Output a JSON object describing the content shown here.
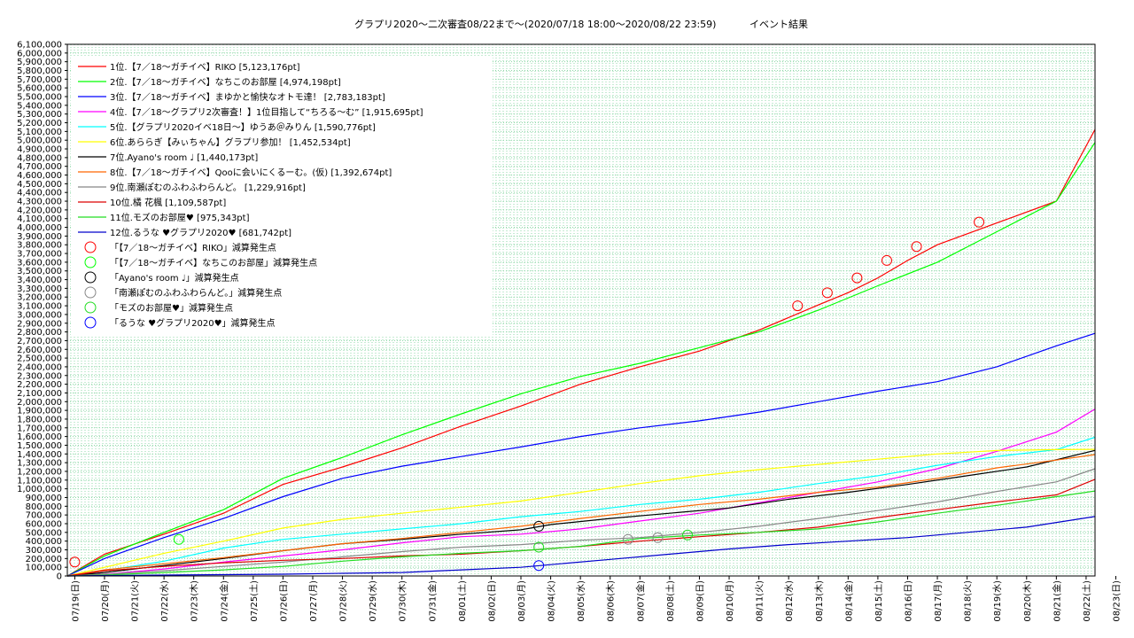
{
  "chart_data": {
    "type": "line",
    "title": "グラプリ2020〜二次審査08/22まで〜(2020/07/18 18:00〜2020/08/22 23:59)",
    "subtitle": "イベント結果",
    "xlabel": "",
    "ylabel": "",
    "ylim": [
      0,
      6100000
    ],
    "grid": true,
    "legend_position": "top-left",
    "x_labels": [
      "07/19(日)",
      "07/20(月)",
      "07/21(火)",
      "07/22(水)",
      "07/23(木)",
      "07/24(金)",
      "07/25(土)",
      "07/26(日)",
      "07/27(月)",
      "07/28(火)",
      "07/29(水)",
      "07/30(木)",
      "07/31(金)",
      "08/01(土)",
      "08/02(日)",
      "08/03(月)",
      "08/04(火)",
      "08/05(水)",
      "08/06(木)",
      "08/07(金)",
      "08/08(土)",
      "08/09(日)",
      "08/10(月)",
      "08/11(火)",
      "08/12(水)",
      "08/13(木)",
      "08/14(金)",
      "08/15(土)",
      "08/16(日)",
      "08/17(月)",
      "08/18(火)",
      "08/19(水)",
      "08/20(木)",
      "08/21(金)",
      "08/22(土)",
      "08/23(日)"
    ],
    "y_ticks": [
      "0",
      "100,000",
      "200,000",
      "300,000",
      "400,000",
      "500,000",
      "600,000",
      "700,000",
      "800,000",
      "900,000",
      "1,000,000",
      "1,100,000",
      "1,200,000",
      "1,300,000",
      "1,400,000",
      "1,500,000",
      "1,600,000",
      "1,700,000",
      "1,800,000",
      "1,900,000",
      "2,000,000",
      "2,100,000",
      "2,200,000",
      "2,300,000",
      "2,400,000",
      "2,500,000",
      "2,600,000",
      "2,700,000",
      "2,800,000",
      "2,900,000",
      "3,000,000",
      "3,100,000",
      "3,200,000",
      "3,300,000",
      "3,400,000",
      "3,500,000",
      "3,600,000",
      "3,700,000",
      "3,800,000",
      "3,900,000",
      "4,000,000",
      "4,100,000",
      "4,200,000",
      "4,300,000",
      "4,400,000",
      "4,500,000",
      "4,600,000",
      "4,700,000",
      "4,800,000",
      "4,900,000",
      "5,000,000",
      "5,100,000",
      "5,200,000",
      "5,300,000",
      "5,400,000",
      "5,500,000",
      "5,600,000",
      "5,700,000",
      "5,800,000",
      "5,900,000",
      "6,000,000",
      "6,100,000"
    ],
    "x_range": [
      -0.25,
      34.3
    ],
    "series": [
      {
        "name": "1位.【7／18〜ガチイベ】RIKO [5,123,176pt]",
        "color": "#ff0000",
        "points": [
          [
            -0.25,
            0
          ],
          [
            1,
            250000
          ],
          [
            3,
            480000
          ],
          [
            5,
            720000
          ],
          [
            7,
            1050000
          ],
          [
            9,
            1250000
          ],
          [
            11,
            1470000
          ],
          [
            13,
            1720000
          ],
          [
            15,
            1950000
          ],
          [
            17,
            2200000
          ],
          [
            19,
            2400000
          ],
          [
            21,
            2580000
          ],
          [
            23,
            2820000
          ],
          [
            25,
            3110000
          ],
          [
            26,
            3250000
          ],
          [
            27,
            3420000
          ],
          [
            28,
            3620000
          ],
          [
            29,
            3800000
          ],
          [
            31,
            4050000
          ],
          [
            33,
            4300000
          ],
          [
            34.3,
            5123176
          ]
        ]
      },
      {
        "name": "2位.【7／18〜ガチイベ】なちこのお部屋 [4,974,198pt]",
        "color": "#00ff00",
        "points": [
          [
            -0.25,
            0
          ],
          [
            1,
            230000
          ],
          [
            3,
            500000
          ],
          [
            5,
            760000
          ],
          [
            7,
            1120000
          ],
          [
            9,
            1360000
          ],
          [
            11,
            1620000
          ],
          [
            13,
            1860000
          ],
          [
            15,
            2090000
          ],
          [
            17,
            2290000
          ],
          [
            19,
            2440000
          ],
          [
            21,
            2620000
          ],
          [
            23,
            2800000
          ],
          [
            25,
            3050000
          ],
          [
            27,
            3330000
          ],
          [
            29,
            3600000
          ],
          [
            31,
            3950000
          ],
          [
            33,
            4300000
          ],
          [
            34.3,
            4974198
          ]
        ]
      },
      {
        "name": "3位.【7／18〜ガチイベ】まゆかと愉快なオトモ達！ [2,783,183pt]",
        "color": "#0000ff",
        "points": [
          [
            -0.25,
            0
          ],
          [
            1,
            200000
          ],
          [
            3,
            440000
          ],
          [
            5,
            660000
          ],
          [
            7,
            910000
          ],
          [
            9,
            1120000
          ],
          [
            11,
            1260000
          ],
          [
            13,
            1370000
          ],
          [
            15,
            1480000
          ],
          [
            17,
            1600000
          ],
          [
            19,
            1700000
          ],
          [
            21,
            1780000
          ],
          [
            23,
            1880000
          ],
          [
            25,
            2000000
          ],
          [
            27,
            2120000
          ],
          [
            29,
            2230000
          ],
          [
            31,
            2400000
          ],
          [
            33,
            2640000
          ],
          [
            34.3,
            2783183
          ]
        ]
      },
      {
        "name": "4位.【7／18〜グラプリ2次審査！】1位目指して“ちろる〜む” [1,915,695pt]",
        "color": "#ff00ff",
        "points": [
          [
            -0.25,
            0
          ],
          [
            1,
            20000
          ],
          [
            3,
            80000
          ],
          [
            5,
            160000
          ],
          [
            7,
            230000
          ],
          [
            9,
            300000
          ],
          [
            11,
            380000
          ],
          [
            13,
            450000
          ],
          [
            15,
            480000
          ],
          [
            17,
            540000
          ],
          [
            19,
            630000
          ],
          [
            21,
            720000
          ],
          [
            23,
            840000
          ],
          [
            25,
            960000
          ],
          [
            27,
            1080000
          ],
          [
            29,
            1230000
          ],
          [
            31,
            1430000
          ],
          [
            33,
            1650000
          ],
          [
            34.3,
            1915695
          ]
        ]
      },
      {
        "name": "5位.【グラプリ2020イベ18日〜】ゆうあ＠みりん [1,590,776pt]",
        "color": "#00ffff",
        "points": [
          [
            -0.25,
            0
          ],
          [
            1,
            60000
          ],
          [
            3,
            170000
          ],
          [
            5,
            320000
          ],
          [
            7,
            420000
          ],
          [
            9,
            480000
          ],
          [
            11,
            540000
          ],
          [
            13,
            600000
          ],
          [
            15,
            680000
          ],
          [
            17,
            740000
          ],
          [
            19,
            820000
          ],
          [
            21,
            880000
          ],
          [
            23,
            960000
          ],
          [
            25,
            1060000
          ],
          [
            27,
            1150000
          ],
          [
            29,
            1270000
          ],
          [
            31,
            1370000
          ],
          [
            33,
            1450000
          ],
          [
            34.3,
            1590776
          ]
        ]
      },
      {
        "name": "6位.あららぎ【みぃちゃん】グラプリ参加！ [1,452,534pt]",
        "color": "#ffff00",
        "points": [
          [
            -0.25,
            0
          ],
          [
            1,
            100000
          ],
          [
            3,
            260000
          ],
          [
            5,
            400000
          ],
          [
            7,
            550000
          ],
          [
            9,
            650000
          ],
          [
            11,
            720000
          ],
          [
            13,
            790000
          ],
          [
            15,
            860000
          ],
          [
            17,
            960000
          ],
          [
            19,
            1060000
          ],
          [
            21,
            1150000
          ],
          [
            23,
            1220000
          ],
          [
            25,
            1280000
          ],
          [
            27,
            1340000
          ],
          [
            29,
            1400000
          ],
          [
            31,
            1440000
          ],
          [
            33,
            1450000
          ],
          [
            34.3,
            1452534
          ]
        ]
      },
      {
        "name": "7位.Ayano's room ♩ [1,440,173pt]",
        "color": "#000000",
        "points": [
          [
            -0.25,
            0
          ],
          [
            1,
            40000
          ],
          [
            3,
            120000
          ],
          [
            5,
            200000
          ],
          [
            7,
            290000
          ],
          [
            9,
            370000
          ],
          [
            11,
            420000
          ],
          [
            13,
            480000
          ],
          [
            15,
            530000
          ],
          [
            16,
            590000
          ],
          [
            18,
            660000
          ],
          [
            20,
            720000
          ],
          [
            22,
            780000
          ],
          [
            24,
            880000
          ],
          [
            26,
            960000
          ],
          [
            28,
            1050000
          ],
          [
            30,
            1150000
          ],
          [
            32,
            1250000
          ],
          [
            34.3,
            1440173
          ]
        ]
      },
      {
        "name": "8位.【7／18〜ガチイベ】Qooに会いにくるーむ。(仮) [1,392,674pt]",
        "color": "#ff6600",
        "points": [
          [
            -0.25,
            0
          ],
          [
            1,
            70000
          ],
          [
            3,
            140000
          ],
          [
            5,
            210000
          ],
          [
            7,
            290000
          ],
          [
            9,
            370000
          ],
          [
            11,
            430000
          ],
          [
            13,
            500000
          ],
          [
            15,
            570000
          ],
          [
            17,
            660000
          ],
          [
            19,
            740000
          ],
          [
            21,
            820000
          ],
          [
            23,
            880000
          ],
          [
            25,
            960000
          ],
          [
            27,
            1020000
          ],
          [
            29,
            1120000
          ],
          [
            31,
            1240000
          ],
          [
            33,
            1330000
          ],
          [
            34.3,
            1392674
          ]
        ]
      },
      {
        "name": "9位.南瀬ぽむのふわふわらんど。 [1,229,916pt]",
        "color": "#888888",
        "points": [
          [
            -0.25,
            0
          ],
          [
            1,
            20000
          ],
          [
            3,
            60000
          ],
          [
            5,
            110000
          ],
          [
            7,
            160000
          ],
          [
            9,
            220000
          ],
          [
            11,
            280000
          ],
          [
            13,
            330000
          ],
          [
            15,
            360000
          ],
          [
            17,
            410000
          ],
          [
            19,
            440000
          ],
          [
            21,
            500000
          ],
          [
            23,
            570000
          ],
          [
            25,
            660000
          ],
          [
            27,
            750000
          ],
          [
            29,
            850000
          ],
          [
            31,
            970000
          ],
          [
            33,
            1080000
          ],
          [
            34.3,
            1229916
          ]
        ]
      },
      {
        "name": "10位.橘 花楓 [1,109,587pt]",
        "color": "#dd0000",
        "points": [
          [
            -0.25,
            0
          ],
          [
            1,
            60000
          ],
          [
            3,
            110000
          ],
          [
            5,
            150000
          ],
          [
            7,
            180000
          ],
          [
            9,
            200000
          ],
          [
            11,
            230000
          ],
          [
            13,
            250000
          ],
          [
            15,
            290000
          ],
          [
            17,
            340000
          ],
          [
            19,
            400000
          ],
          [
            21,
            450000
          ],
          [
            23,
            500000
          ],
          [
            25,
            560000
          ],
          [
            27,
            670000
          ],
          [
            29,
            760000
          ],
          [
            31,
            850000
          ],
          [
            33,
            930000
          ],
          [
            34.3,
            1109587
          ]
        ]
      },
      {
        "name": "11位.モズのお部屋♥ [975,343pt]",
        "color": "#22dd22",
        "points": [
          [
            -0.25,
            0
          ],
          [
            1,
            10000
          ],
          [
            3,
            40000
          ],
          [
            5,
            70000
          ],
          [
            7,
            110000
          ],
          [
            9,
            170000
          ],
          [
            11,
            220000
          ],
          [
            13,
            260000
          ],
          [
            15,
            290000
          ],
          [
            17,
            340000
          ],
          [
            19,
            430000
          ],
          [
            21,
            470000
          ],
          [
            23,
            500000
          ],
          [
            25,
            540000
          ],
          [
            27,
            620000
          ],
          [
            29,
            720000
          ],
          [
            31,
            810000
          ],
          [
            33,
            910000
          ],
          [
            34.3,
            975343
          ]
        ]
      },
      {
        "name": "12位.るうな ♥グラプリ2020♥ [681,742pt]",
        "color": "#0000cc",
        "points": [
          [
            -0.25,
            0
          ],
          [
            1,
            5000
          ],
          [
            3,
            10000
          ],
          [
            5,
            15000
          ],
          [
            7,
            20000
          ],
          [
            9,
            30000
          ],
          [
            11,
            40000
          ],
          [
            13,
            70000
          ],
          [
            15,
            100000
          ],
          [
            16,
            130000
          ],
          [
            18,
            190000
          ],
          [
            20,
            250000
          ],
          [
            22,
            310000
          ],
          [
            24,
            360000
          ],
          [
            26,
            400000
          ],
          [
            28,
            440000
          ],
          [
            30,
            500000
          ],
          [
            32,
            560000
          ],
          [
            34.3,
            681742
          ]
        ]
      }
    ],
    "markers": [
      {
        "name": "「【7／18〜ガチイベ】RIKO」減算発生点",
        "color": "#ff0000",
        "points": [
          [
            0,
            160000
          ],
          [
            24.3,
            3100000
          ],
          [
            25.3,
            3250000
          ],
          [
            26.3,
            3420000
          ],
          [
            27.3,
            3620000
          ],
          [
            28.3,
            3780000
          ],
          [
            30.4,
            4060000
          ]
        ]
      },
      {
        "name": "「【7／18〜ガチイベ】なちこのお部屋」減算発生点",
        "color": "#00ff00",
        "points": [
          [
            3.5,
            420000
          ]
        ]
      },
      {
        "name": "「Ayano's room ♩」減算発生点",
        "color": "#000000",
        "points": [
          [
            15.6,
            570000
          ]
        ]
      },
      {
        "name": "「南瀬ぽむのふわふわらんど。」減算発生点",
        "color": "#888888",
        "points": [
          [
            18.6,
            420000
          ],
          [
            19.6,
            440000
          ]
        ]
      },
      {
        "name": "「モズのお部屋♥」減算発生点",
        "color": "#22dd22",
        "points": [
          [
            15.6,
            330000
          ],
          [
            20.6,
            470000
          ]
        ]
      },
      {
        "name": "「るうな ♥グラプリ2020♥」減算発生点",
        "color": "#0000ff",
        "points": [
          [
            15.6,
            120000
          ]
        ]
      }
    ]
  }
}
